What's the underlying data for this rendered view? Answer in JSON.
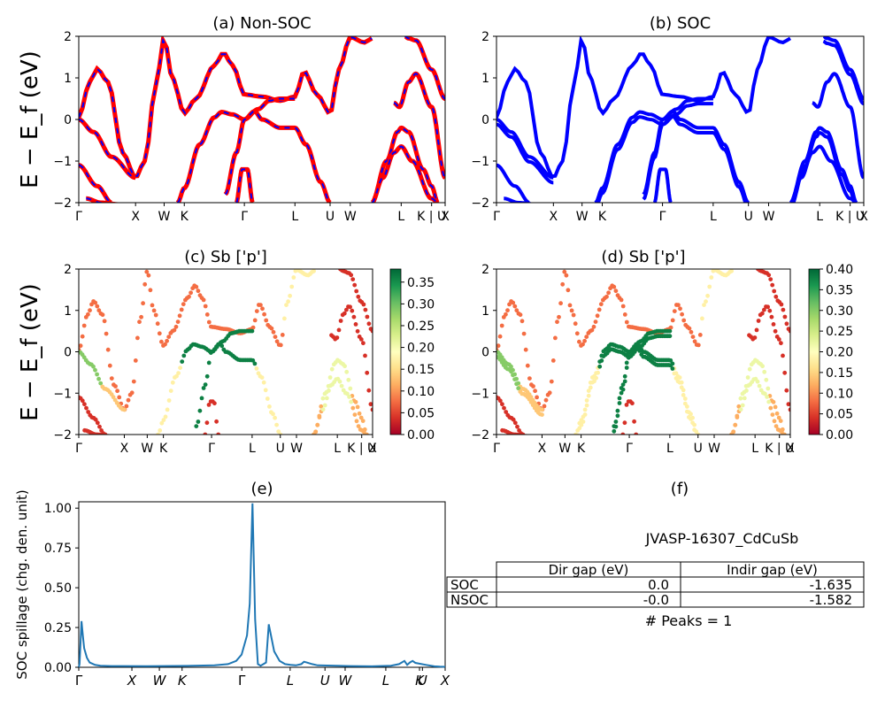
{
  "chart_data": {
    "type": "figure",
    "band_ylabel": "E − E_f (eV)",
    "kpath_labels": [
      "Γ",
      "X",
      "W",
      "K",
      "Γ",
      "L",
      "U",
      "W",
      "L",
      "K | U",
      "X"
    ],
    "ylim": [
      -2,
      2
    ],
    "yticks": [
      -2,
      -1,
      0,
      1,
      2
    ],
    "panels": [
      {
        "id": "a",
        "type": "line",
        "title": "(a) Non-SOC",
        "colors": [
          "#ff0000",
          "#0000ff"
        ],
        "line_style": "red solid with blue dashes"
      },
      {
        "id": "b",
        "type": "line",
        "title": "(b) SOC",
        "colors": [
          "#0000ff"
        ]
      },
      {
        "id": "c",
        "type": "scatter",
        "title": "(c)  Sb ['p']",
        "colorbar": {
          "cmap": "RdYlGn",
          "range": [
            0,
            0.38
          ],
          "ticks": [
            "0.00",
            "0.05",
            "0.10",
            "0.15",
            "0.20",
            "0.25",
            "0.30",
            "0.35"
          ]
        }
      },
      {
        "id": "d",
        "type": "scatter",
        "title": "(d) Sb ['p']",
        "colorbar": {
          "cmap": "RdYlGn",
          "range": [
            0,
            0.4
          ],
          "ticks": [
            "0.00",
            "0.05",
            "0.10",
            "0.15",
            "0.20",
            "0.25",
            "0.30",
            "0.35",
            "0.40"
          ]
        }
      },
      {
        "id": "e",
        "type": "line",
        "title": "(e)",
        "ylabel": "SOC spillage (chg. den. unit)",
        "ylim": [
          0,
          1.04
        ],
        "yticks": [
          "0.00",
          "0.25",
          "0.50",
          "0.75",
          "1.00"
        ],
        "xticks": [
          "Γ",
          "X",
          "W",
          "K",
          "Γ",
          "L",
          "U",
          "W",
          "L",
          "K",
          "U",
          "X"
        ],
        "color": "#1f77b4",
        "points": [
          [
            0,
            0.0
          ],
          [
            0.3,
            0.02
          ],
          [
            1,
            0.29
          ],
          [
            1.5,
            0.2
          ],
          [
            2,
            0.12
          ],
          [
            3,
            0.06
          ],
          [
            4,
            0.03
          ],
          [
            6,
            0.015
          ],
          [
            8,
            0.01
          ],
          [
            12,
            0.008
          ],
          [
            16,
            0.008
          ],
          [
            25,
            0.007
          ],
          [
            30,
            0.008
          ],
          [
            40,
            0.009
          ],
          [
            50,
            0.012
          ],
          [
            55,
            0.02
          ],
          [
            58,
            0.04
          ],
          [
            60,
            0.08
          ],
          [
            62,
            0.2
          ],
          [
            63,
            0.4
          ],
          [
            64,
            1.03
          ],
          [
            65,
            0.3
          ],
          [
            66,
            0.02
          ],
          [
            67,
            0.01
          ],
          [
            69,
            0.03
          ],
          [
            70,
            0.27
          ],
          [
            72,
            0.1
          ],
          [
            74,
            0.04
          ],
          [
            76,
            0.02
          ],
          [
            78,
            0.015
          ],
          [
            80,
            0.012
          ],
          [
            82,
            0.02
          ],
          [
            83,
            0.035
          ],
          [
            84,
            0.03
          ],
          [
            86,
            0.02
          ],
          [
            88,
            0.012
          ],
          [
            95,
            0.01
          ],
          [
            100,
            0.008
          ],
          [
            108,
            0.006
          ],
          [
            115,
            0.01
          ],
          [
            118,
            0.02
          ],
          [
            120,
            0.04
          ],
          [
            121,
            0.015
          ],
          [
            122,
            0.03
          ],
          [
            123,
            0.04
          ],
          [
            124,
            0.028
          ],
          [
            128,
            0.015
          ],
          [
            131,
            0.006
          ],
          [
            133,
            0.004
          ],
          [
            135,
            0.003
          ]
        ]
      }
    ],
    "table": {
      "title": "(f)",
      "subtitle": "JVASP-16307_CdCuSb",
      "columns": [
        "Dir gap (eV)",
        "Indir gap (eV)"
      ],
      "rows": [
        {
          "label": "SOC",
          "values": [
            "0.0",
            "-1.635"
          ]
        },
        {
          "label": "NSOC",
          "values": [
            "-0.0",
            "-1.582"
          ]
        }
      ],
      "footer": "# Peaks = 1"
    }
  }
}
